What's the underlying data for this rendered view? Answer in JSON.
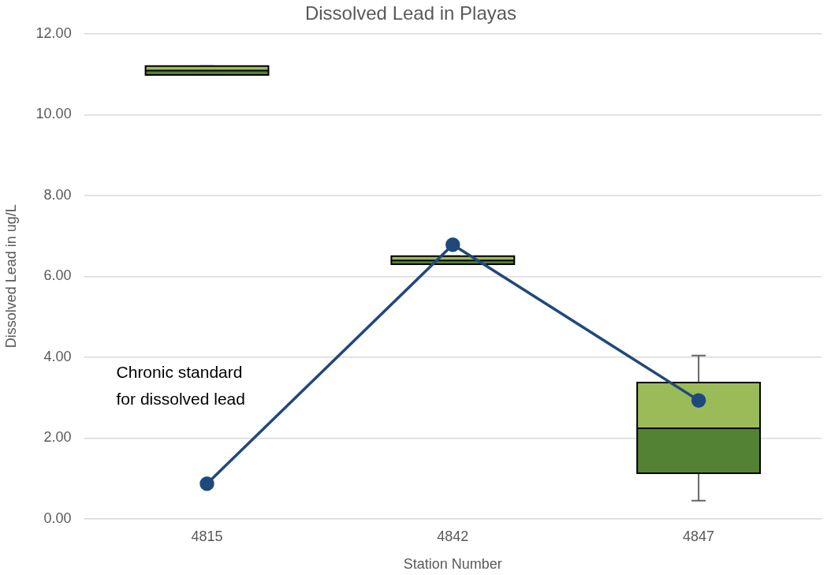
{
  "chart_data": {
    "type": "box",
    "title": "Dissolved Lead in Playas",
    "xlabel": "Station Number",
    "ylabel": "Dissolved Lead in ug/L",
    "categories": [
      "4815",
      "4842",
      "4847"
    ],
    "series": [
      {
        "type": "box",
        "color": "#9bbb59",
        "colors": [
          "#548235",
          "#548235",
          "#548235"
        ],
        "boxes": [
          {
            "low": 10.98,
            "q1": 10.98,
            "median": 11.09,
            "q3": 11.2,
            "high": 11.2
          },
          {
            "low": 6.3,
            "q1": 6.3,
            "median": 6.39,
            "q3": 6.5,
            "high": 6.5
          },
          {
            "low": 0.45,
            "q1": 1.13,
            "median": 2.24,
            "q3": 3.37,
            "high": 4.04
          }
        ]
      },
      {
        "type": "line",
        "name": "Chronic standard for dissolved lead",
        "color": "#1f497d",
        "values": [
          0.87,
          6.78,
          2.93
        ]
      }
    ],
    "ylim": [
      0,
      12
    ],
    "yticks": [
      {
        "value": 0,
        "label": "0.00"
      },
      {
        "value": 2,
        "label": "2.00"
      },
      {
        "value": 4,
        "label": "4.00"
      },
      {
        "value": 6,
        "label": "6.00"
      },
      {
        "value": 8,
        "label": "8.00"
      },
      {
        "value": 10,
        "label": "10.00"
      },
      {
        "value": 12,
        "label": "12.00"
      }
    ],
    "grid": "y",
    "legend": false,
    "marker": "circle",
    "line_style": "solid"
  }
}
